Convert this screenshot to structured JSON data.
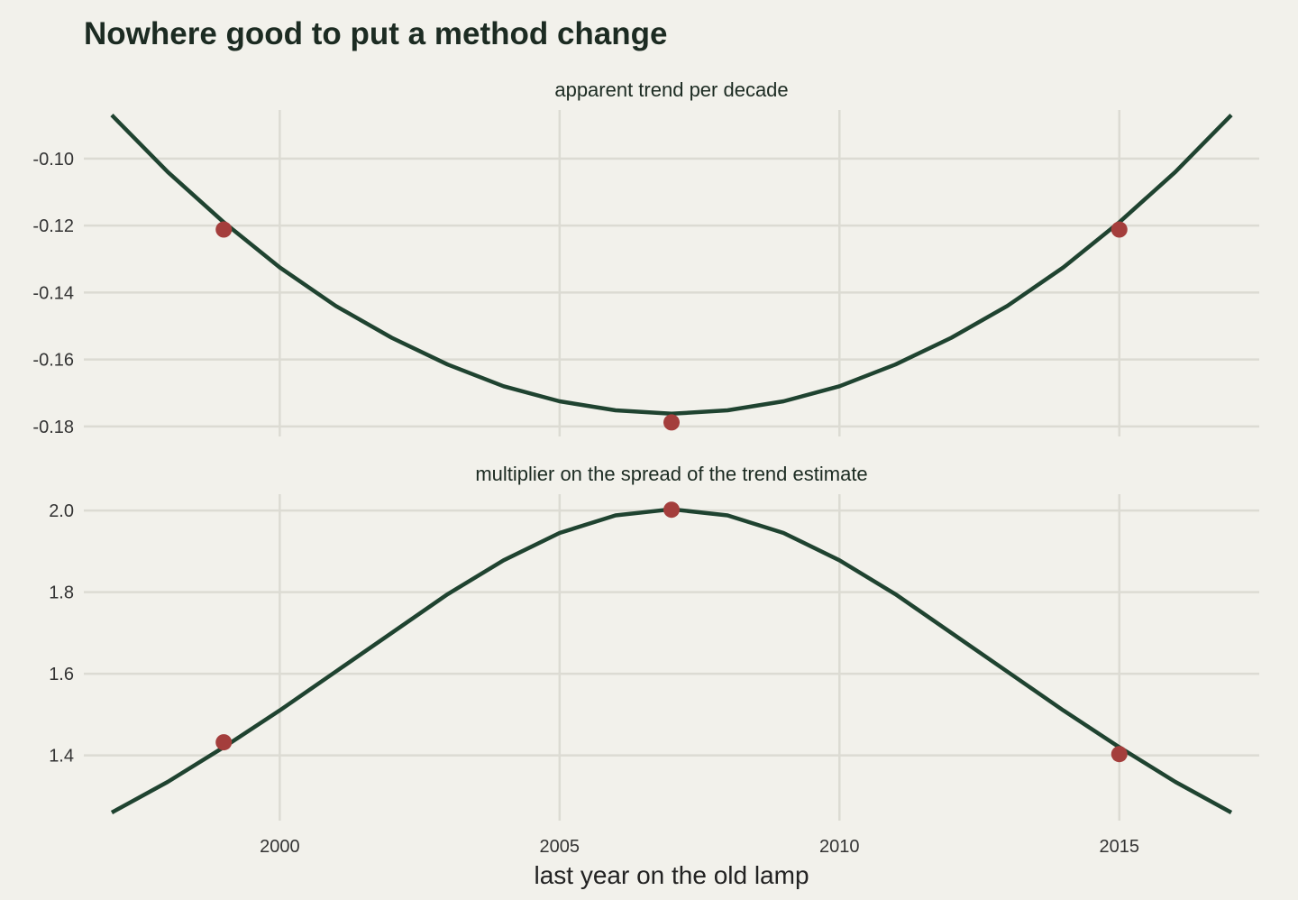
{
  "chart_data": {
    "type": "line",
    "title": "Nowhere good to put a method change",
    "xlabel": "last year on the old lamp",
    "x_ticks": [
      2000,
      2005,
      2010,
      2015
    ],
    "xlim": [
      1996.5,
      2017.5
    ],
    "colors": {
      "line": "#1f4330",
      "point": "#a43e3c",
      "background": "#f2f1eb",
      "grid": "#dcdbd3"
    },
    "panels": [
      {
        "strip_label": "apparent trend per decade",
        "ylim": [
          -0.183,
          -0.0855
        ],
        "y_ticks": [
          -0.1,
          -0.12,
          -0.14,
          -0.16,
          -0.18
        ],
        "y_tick_labels": [
          "-0.10",
          "-0.12",
          "-0.14",
          "-0.16",
          "-0.18"
        ],
        "line": {
          "x": [
            1997,
            1998,
            1999,
            2000,
            2001,
            2002,
            2003,
            2004,
            2005,
            2006,
            2007,
            2008,
            2009,
            2010,
            2011,
            2012,
            2013,
            2014,
            2015,
            2016,
            2017
          ],
          "y": [
            -0.087,
            -0.104,
            -0.119,
            -0.1325,
            -0.144,
            -0.1535,
            -0.1615,
            -0.168,
            -0.1725,
            -0.1752,
            -0.1762,
            -0.1752,
            -0.1725,
            -0.168,
            -0.1615,
            -0.1535,
            -0.144,
            -0.1325,
            -0.119,
            -0.104,
            -0.087
          ]
        },
        "points": {
          "x": [
            1999,
            2007,
            2015
          ],
          "y": [
            -0.1212,
            -0.1788,
            -0.1212
          ]
        }
      },
      {
        "strip_label": "multiplier on the spread of the trend estimate",
        "ylim": [
          1.24,
          2.04
        ],
        "y_ticks": [
          2.0,
          1.8,
          1.6,
          1.4
        ],
        "y_tick_labels": [
          "2.0",
          "1.8",
          "1.6",
          "1.4"
        ],
        "line": {
          "x": [
            1997,
            1998,
            1999,
            2000,
            2001,
            2002,
            2003,
            2004,
            2005,
            2006,
            2007,
            2008,
            2009,
            2010,
            2011,
            2012,
            2013,
            2014,
            2015,
            2016,
            2017
          ],
          "y": [
            1.26,
            1.335,
            1.42,
            1.51,
            1.605,
            1.7,
            1.795,
            1.878,
            1.945,
            1.988,
            2.003,
            1.988,
            1.945,
            1.878,
            1.795,
            1.7,
            1.605,
            1.51,
            1.42,
            1.335,
            1.26
          ]
        },
        "points": {
          "x": [
            1999,
            2007,
            2015
          ],
          "y": [
            1.432,
            2.002,
            1.403
          ]
        }
      }
    ]
  }
}
